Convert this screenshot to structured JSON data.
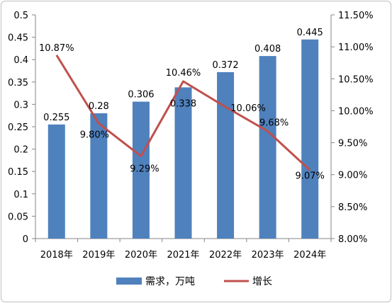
{
  "chart_data": {
    "type": "bar+line",
    "categories": [
      "2018年",
      "2019年",
      "2020年",
      "2021年",
      "2022年",
      "2023年",
      "2024年"
    ],
    "series": [
      {
        "name": "需求，万吨",
        "type": "bar",
        "axis": "left",
        "values": [
          0.255,
          0.28,
          0.306,
          0.338,
          0.372,
          0.408,
          0.445
        ],
        "labels": [
          "0.255",
          "0.28",
          "0.306",
          "0.338",
          "0.372",
          "0.408",
          "0.445"
        ],
        "color": "#4f81bd"
      },
      {
        "name": "增长",
        "type": "line",
        "axis": "right",
        "values": [
          10.87,
          9.8,
          9.29,
          10.46,
          10.06,
          9.68,
          9.07
        ],
        "labels": [
          "10.87%",
          "9.80%",
          "9.29%",
          "10.46%",
          "10.06%",
          "9.68%",
          "9.07%"
        ],
        "color": "#c0504d"
      }
    ],
    "y_left": {
      "min": 0,
      "max": 0.5,
      "ticks": [
        "0",
        "0.05",
        "0.1",
        "0.15",
        "0.2",
        "0.25",
        "0.3",
        "0.35",
        "0.4",
        "0.45",
        "0.5"
      ]
    },
    "y_right": {
      "min": 8.0,
      "max": 11.5,
      "ticks": [
        "8.00%",
        "8.50%",
        "9.00%",
        "9.50%",
        "10.00%",
        "10.50%",
        "11.00%",
        "11.50%"
      ]
    },
    "grid": false,
    "legend": "bottom"
  }
}
